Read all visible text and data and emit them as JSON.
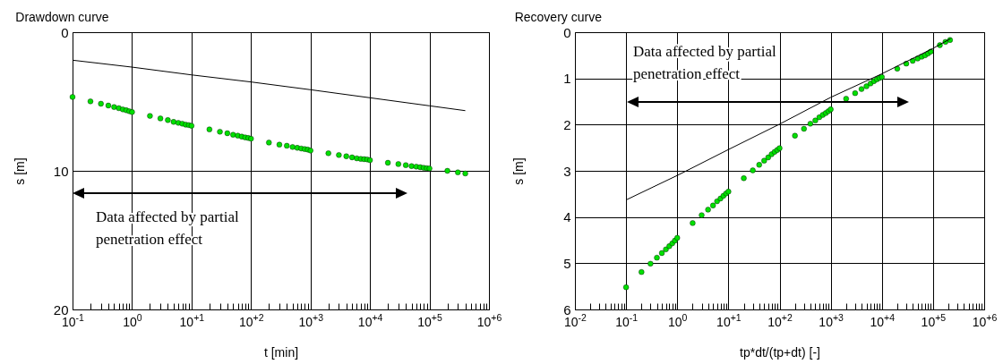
{
  "chart_data": [
    {
      "type": "scatter",
      "title": "Drawdown curve",
      "xlabel": "t [min]",
      "ylabel": "s [m]",
      "log": "x",
      "grid": true,
      "xlim": [
        0.1,
        1000000
      ],
      "ylim": [
        20,
        0
      ],
      "yticks": [
        0,
        10,
        20
      ],
      "xticks": [
        {
          "value": 0.1,
          "label": "10$^{-1}$"
        },
        {
          "value": 0.2,
          "label": null
        },
        {
          "value": 0.3,
          "label": null
        },
        {
          "value": 0.4,
          "label": null
        },
        {
          "value": 0.5,
          "label": null
        },
        {
          "value": 0.6,
          "label": null
        },
        {
          "value": 0.7,
          "label": null
        },
        {
          "value": 0.8,
          "label": null
        },
        {
          "value": 0.9,
          "label": null
        },
        {
          "value": 1,
          "label": "10$^{0}$"
        },
        {
          "value": 2,
          "label": null
        },
        {
          "value": 3,
          "label": null
        },
        {
          "value": 4,
          "label": null
        },
        {
          "value": 5,
          "label": null
        },
        {
          "value": 6,
          "label": null
        },
        {
          "value": 7,
          "label": null
        },
        {
          "value": 8,
          "label": null
        },
        {
          "value": 9,
          "label": null
        },
        {
          "value": 10,
          "label": "10$^{+1}$"
        },
        {
          "value": 20,
          "label": null
        },
        {
          "value": 30,
          "label": null
        },
        {
          "value": 40,
          "label": null
        },
        {
          "value": 50,
          "label": null
        },
        {
          "value": 60,
          "label": null
        },
        {
          "value": 70,
          "label": null
        },
        {
          "value": 80,
          "label": null
        },
        {
          "value": 90,
          "label": null
        },
        {
          "value": 100,
          "label": "10$^{+2}$"
        },
        {
          "value": 200,
          "label": null
        },
        {
          "value": 300,
          "label": null
        },
        {
          "value": 400,
          "label": null
        },
        {
          "value": 500,
          "label": null
        },
        {
          "value": 600,
          "label": null
        },
        {
          "value": 700,
          "label": null
        },
        {
          "value": 800,
          "label": null
        },
        {
          "value": 900,
          "label": null
        },
        {
          "value": 1000,
          "label": "10$^{+3}$"
        },
        {
          "value": 2000,
          "label": null
        },
        {
          "value": 3000,
          "label": null
        },
        {
          "value": 4000,
          "label": null
        },
        {
          "value": 5000,
          "label": null
        },
        {
          "value": 6000,
          "label": null
        },
        {
          "value": 7000,
          "label": null
        },
        {
          "value": 8000,
          "label": null
        },
        {
          "value": 9000,
          "label": null
        },
        {
          "value": 10000,
          "label": "10$^{+4}$"
        },
        {
          "value": 20000,
          "label": null
        },
        {
          "value": 30000,
          "label": null
        },
        {
          "value": 40000,
          "label": null
        },
        {
          "value": 50000,
          "label": null
        },
        {
          "value": 60000,
          "label": null
        },
        {
          "value": 70000,
          "label": null
        },
        {
          "value": 80000,
          "label": null
        },
        {
          "value": 90000,
          "label": null
        },
        {
          "value": 100000,
          "label": "10$^{+5}$"
        },
        {
          "value": 200000,
          "label": null
        },
        {
          "value": 300000,
          "label": null
        },
        {
          "value": 400000,
          "label": null
        },
        {
          "value": 500000,
          "label": null
        },
        {
          "value": 600000,
          "label": null
        },
        {
          "value": 700000,
          "label": null
        },
        {
          "value": 800000,
          "label": null
        },
        {
          "value": 900000,
          "label": null
        },
        {
          "value": 1000000,
          "label": "10$^{+6}$"
        }
      ],
      "series": [
        {
          "type": "scatter",
          "marker": "circle",
          "color": "#00e000",
          "x": [
            0.1,
            0.2,
            0.3,
            0.4,
            0.5,
            0.6,
            0.7,
            0.8,
            0.9,
            1,
            2,
            3,
            4,
            5,
            6,
            7,
            8,
            9,
            10,
            20,
            30,
            40,
            50,
            60,
            70,
            80,
            90,
            100,
            200,
            300,
            400,
            500,
            600,
            700,
            800,
            900,
            1000,
            2000,
            3000,
            4000,
            5000,
            6000,
            7000,
            8000,
            9000,
            10000,
            20000,
            30000,
            40000,
            50000,
            60000,
            70000,
            80000,
            90000,
            100000,
            200000,
            300000,
            400000
          ],
          "values": [
            4.67,
            4.99,
            5.16,
            5.29,
            5.4,
            5.48,
            5.57,
            5.63,
            5.7,
            5.76,
            6.04,
            6.22,
            6.34,
            6.47,
            6.54,
            6.6,
            6.67,
            6.7,
            6.75,
            7.01,
            7.18,
            7.29,
            7.4,
            7.46,
            7.53,
            7.59,
            7.63,
            7.68,
            7.96,
            8.11,
            8.19,
            8.28,
            8.34,
            8.39,
            8.43,
            8.47,
            8.54,
            8.73,
            8.86,
            8.95,
            9.03,
            9.1,
            9.14,
            9.16,
            9.18,
            9.23,
            9.42,
            9.51,
            9.59,
            9.66,
            9.7,
            9.74,
            9.78,
            9.81,
            9.83,
            10.0,
            10.11,
            10.19
          ]
        },
        {
          "type": "line",
          "color": "#000000",
          "x": [
            0.1,
            1,
            10,
            100,
            1000,
            10000,
            100000,
            400000
          ],
          "values": [
            2.02,
            2.52,
            3.08,
            3.59,
            4.15,
            4.73,
            5.31,
            5.66
          ]
        }
      ],
      "annotations": [
        "Data affected by partial penetration effect"
      ]
    },
    {
      "type": "scatter",
      "title": "Recovery curve",
      "xlabel": "tp*dt/(tp+dt) [-]",
      "ylabel": "s [m]",
      "log": "x",
      "grid": true,
      "xlim": [
        0.01,
        1000000
      ],
      "ylim": [
        6,
        0
      ],
      "yticks": [
        0,
        1,
        2,
        3,
        4,
        5,
        6
      ],
      "xticks": [
        {
          "value": 0.01,
          "label": "10$^{-2}$"
        },
        {
          "value": 0.02,
          "label": null
        },
        {
          "value": 0.03,
          "label": null
        },
        {
          "value": 0.04,
          "label": null
        },
        {
          "value": 0.05,
          "label": null
        },
        {
          "value": 0.06,
          "label": null
        },
        {
          "value": 0.07,
          "label": null
        },
        {
          "value": 0.08,
          "label": null
        },
        {
          "value": 0.09,
          "label": null
        },
        {
          "value": 0.1,
          "label": "10$^{-1}$"
        },
        {
          "value": 0.2,
          "label": null
        },
        {
          "value": 0.3,
          "label": null
        },
        {
          "value": 0.4,
          "label": null
        },
        {
          "value": 0.5,
          "label": null
        },
        {
          "value": 0.6,
          "label": null
        },
        {
          "value": 0.7,
          "label": null
        },
        {
          "value": 0.8,
          "label": null
        },
        {
          "value": 0.9,
          "label": null
        },
        {
          "value": 1,
          "label": "10$^{0}$"
        },
        {
          "value": 2,
          "label": null
        },
        {
          "value": 3,
          "label": null
        },
        {
          "value": 4,
          "label": null
        },
        {
          "value": 5,
          "label": null
        },
        {
          "value": 6,
          "label": null
        },
        {
          "value": 7,
          "label": null
        },
        {
          "value": 8,
          "label": null
        },
        {
          "value": 9,
          "label": null
        },
        {
          "value": 10,
          "label": "10$^{+1}$"
        },
        {
          "value": 20,
          "label": null
        },
        {
          "value": 30,
          "label": null
        },
        {
          "value": 40,
          "label": null
        },
        {
          "value": 50,
          "label": null
        },
        {
          "value": 60,
          "label": null
        },
        {
          "value": 70,
          "label": null
        },
        {
          "value": 80,
          "label": null
        },
        {
          "value": 90,
          "label": null
        },
        {
          "value": 100,
          "label": "10$^{+2}$"
        },
        {
          "value": 200,
          "label": null
        },
        {
          "value": 300,
          "label": null
        },
        {
          "value": 400,
          "label": null
        },
        {
          "value": 500,
          "label": null
        },
        {
          "value": 600,
          "label": null
        },
        {
          "value": 700,
          "label": null
        },
        {
          "value": 800,
          "label": null
        },
        {
          "value": 900,
          "label": null
        },
        {
          "value": 1000,
          "label": "10$^{+3}$"
        },
        {
          "value": 2000,
          "label": null
        },
        {
          "value": 3000,
          "label": null
        },
        {
          "value": 4000,
          "label": null
        },
        {
          "value": 5000,
          "label": null
        },
        {
          "value": 6000,
          "label": null
        },
        {
          "value": 7000,
          "label": null
        },
        {
          "value": 8000,
          "label": null
        },
        {
          "value": 9000,
          "label": null
        },
        {
          "value": 10000,
          "label": "10$^{+4}$"
        },
        {
          "value": 20000,
          "label": null
        },
        {
          "value": 30000,
          "label": null
        },
        {
          "value": 40000,
          "label": null
        },
        {
          "value": 50000,
          "label": null
        },
        {
          "value": 60000,
          "label": null
        },
        {
          "value": 70000,
          "label": null
        },
        {
          "value": 80000,
          "label": null
        },
        {
          "value": 90000,
          "label": null
        },
        {
          "value": 100000,
          "label": "10$^{+5}$"
        },
        {
          "value": 200000,
          "label": null
        },
        {
          "value": 300000,
          "label": null
        },
        {
          "value": 400000,
          "label": null
        },
        {
          "value": 500000,
          "label": null
        },
        {
          "value": 600000,
          "label": null
        },
        {
          "value": 700000,
          "label": null
        },
        {
          "value": 800000,
          "label": null
        },
        {
          "value": 900000,
          "label": null
        },
        {
          "value": 1000000,
          "label": "10$^{+6}$"
        }
      ],
      "series": [
        {
          "type": "scatter",
          "marker": "circle",
          "color": "#00e000",
          "x": [
            0.1,
            0.2,
            0.3,
            0.4,
            0.5,
            0.6,
            0.7,
            0.8,
            0.9,
            1,
            2,
            3,
            4,
            5,
            6,
            7,
            8,
            9,
            10,
            20,
            30,
            40,
            50,
            60,
            70,
            80,
            90,
            100,
            200,
            300,
            400,
            500,
            600,
            700,
            800,
            900,
            1000,
            2000,
            3000,
            4000,
            5000,
            6000,
            7000,
            8000,
            9000,
            10000,
            20000,
            30000,
            40000,
            50000,
            60000,
            70000,
            80000,
            90000,
            136000,
            175000,
            215000
          ],
          "values": [
            5.52,
            5.19,
            5.01,
            4.88,
            4.78,
            4.7,
            4.63,
            4.57,
            4.51,
            4.45,
            4.13,
            3.96,
            3.84,
            3.75,
            3.66,
            3.6,
            3.54,
            3.49,
            3.45,
            3.16,
            2.99,
            2.87,
            2.78,
            2.71,
            2.64,
            2.59,
            2.55,
            2.51,
            2.24,
            2.09,
            1.98,
            1.91,
            1.84,
            1.79,
            1.75,
            1.71,
            1.67,
            1.44,
            1.32,
            1.23,
            1.17,
            1.11,
            1.06,
            1.02,
            0.99,
            0.97,
            0.79,
            0.68,
            0.62,
            0.57,
            0.53,
            0.5,
            0.46,
            0.42,
            0.28,
            0.21,
            0.17
          ]
        },
        {
          "type": "line",
          "color": "#000000",
          "x": [
            0.1,
            1,
            10,
            100,
            1000,
            10000,
            100000,
            220000
          ],
          "values": [
            3.63,
            3.1,
            2.54,
            1.99,
            1.41,
            0.9,
            0.35,
            0.14
          ]
        }
      ],
      "annotations": [
        "Data affected by partial penetration effect"
      ]
    }
  ]
}
